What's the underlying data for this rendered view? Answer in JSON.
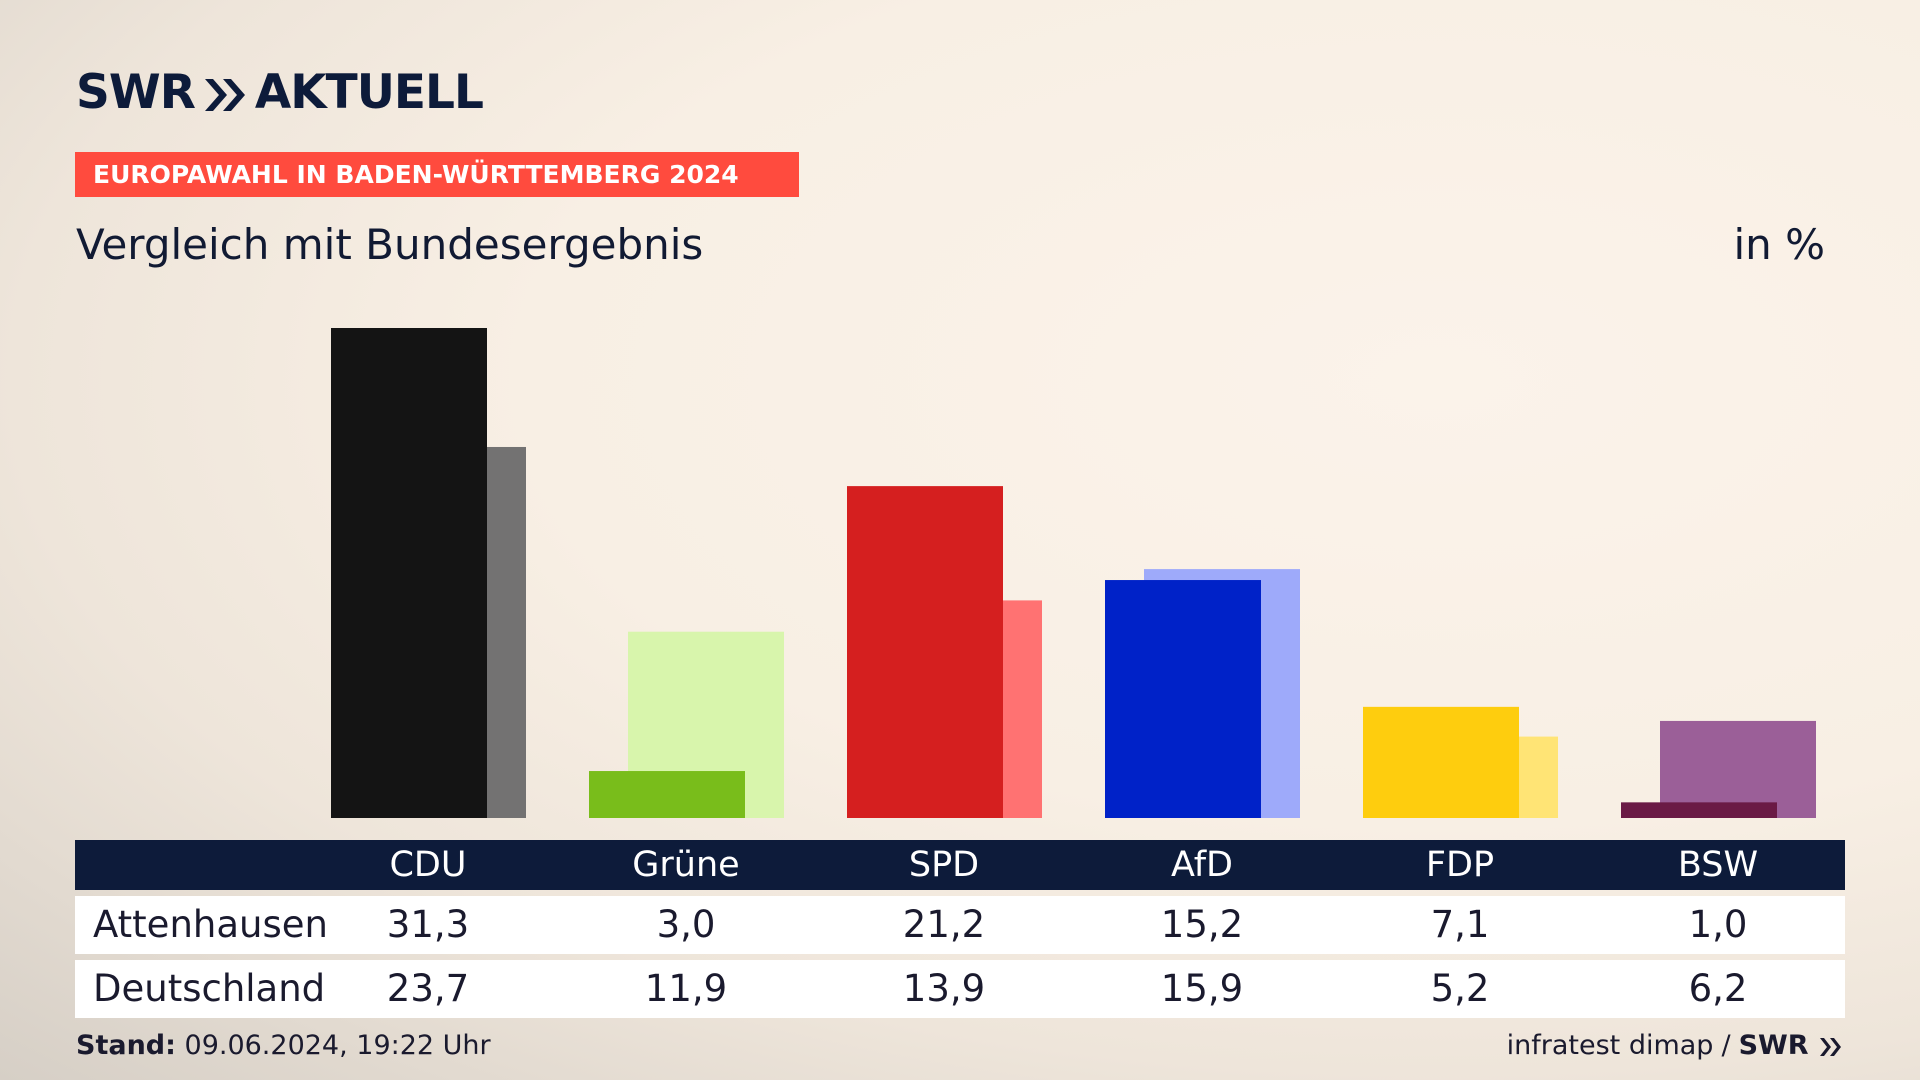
{
  "header": {
    "logo_text_left": "SWR",
    "logo_text_right": "AKTUELL",
    "kicker": "EUROPAWAHL IN BADEN-WÜRTTEMBERG 2024",
    "title": "Vergleich mit Bundesergebnis",
    "unit": "in %"
  },
  "chart_data": {
    "type": "bar",
    "title": "Vergleich mit Bundesergebnis",
    "ylabel": "in %",
    "ylim": [
      0,
      31.3
    ],
    "categories": [
      "CDU",
      "Grüne",
      "SPD",
      "AfD",
      "FDP",
      "BSW"
    ],
    "series": [
      {
        "name": "Attenhausen",
        "values": [
          "31,3",
          "3,0",
          "21,2",
          "15,2",
          "7,1",
          "1,0"
        ],
        "numeric": [
          31.3,
          3.0,
          21.2,
          15.2,
          7.1,
          1.0
        ]
      },
      {
        "name": "Deutschland",
        "values": [
          "23,7",
          "11,9",
          "13,9",
          "15,9",
          "5,2",
          "6,2"
        ],
        "numeric": [
          23.7,
          11.9,
          13.9,
          15.9,
          5.2,
          6.2
        ]
      }
    ],
    "colors_primary": [
      "#141414",
      "#79bd1b",
      "#d51f1f",
      "#0022c8",
      "#fecd0e",
      "#6a1a45"
    ],
    "colors_secondary": [
      "#737272",
      "#d8f5ac",
      "#ff7272",
      "#9eaafa",
      "#ffe475",
      "#9b5f98"
    ],
    "grid": false,
    "legend": "none"
  },
  "footer": {
    "stand_label": "Stand:",
    "stand_value": "09.06.2024, 19:22 Uhr",
    "source": "infratest dimap",
    "separator": "/",
    "brand": "SWR"
  }
}
